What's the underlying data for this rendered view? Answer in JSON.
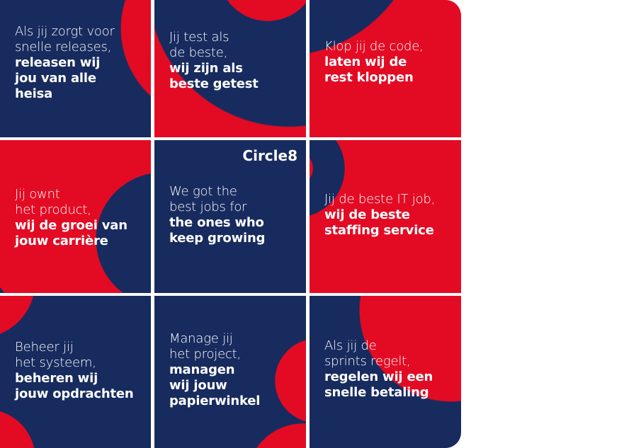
{
  "colors": {
    "red": "#e30b24",
    "navy": "#172b5e"
  },
  "logo": "Circle8",
  "tiles": [
    {
      "light": [
        "Als jij zorgt voor",
        "snelle releases,"
      ],
      "bold": [
        "releasen wij",
        "jou van alle",
        "heisa"
      ]
    },
    {
      "light": [
        "Jij test als",
        "de beste,"
      ],
      "bold": [
        "wij zijn als",
        "beste getest"
      ]
    },
    {
      "light": [
        "Klop jij de code,"
      ],
      "bold": [
        "laten wij de",
        "rest kloppen"
      ]
    },
    {
      "light": [
        "Jij ownt",
        "het product,"
      ],
      "bold": [
        "wij de groei van",
        "jouw carrière"
      ]
    },
    {
      "light": [
        "We got the",
        "best jobs for"
      ],
      "bold": [
        "the ones who",
        "keep growing"
      ]
    },
    {
      "light": [
        "Jij de beste IT job,"
      ],
      "bold": [
        "wij de beste",
        "staffing service"
      ]
    },
    {
      "light": [
        "Beheer jij",
        "het systeem,"
      ],
      "bold": [
        "beheren wij",
        "jouw opdrachten"
      ]
    },
    {
      "light": [
        "Manage jij",
        "het project,"
      ],
      "bold": [
        "managen",
        "wij jouw",
        "papierwinkel"
      ]
    },
    {
      "light": [
        "Als jij de",
        "sprints regelt,"
      ],
      "bold": [
        "regelen wij een",
        "snelle betaling"
      ]
    }
  ]
}
